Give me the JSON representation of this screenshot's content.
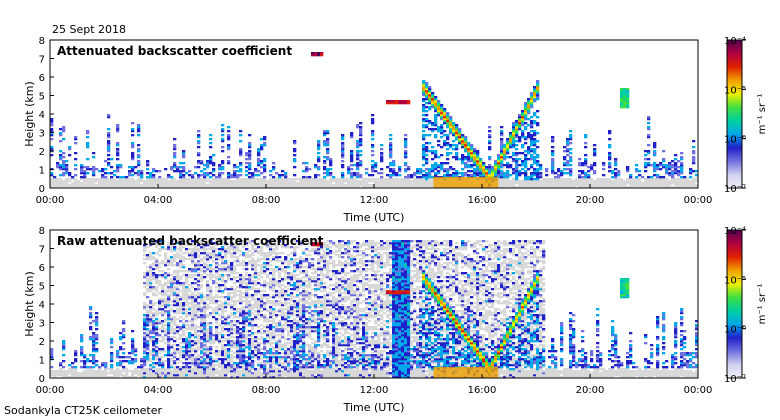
{
  "figure": {
    "date": "25 Sept 2018",
    "instrument": "Sodankyla CT25K ceilometer"
  },
  "colors": {
    "background": "#ffffff",
    "noise_gray": "#d8d8d8",
    "colormap": [
      "#f0f0f8",
      "#d0d0f0",
      "#7070e0",
      "#2020c8",
      "#00a8e8",
      "#00d0a0",
      "#40e040",
      "#f0f000",
      "#f0a000",
      "#e02000",
      "#b00040",
      "#500050"
    ]
  },
  "chart_data": [
    {
      "type": "heatmap",
      "title": "Attenuated backscatter coefficient",
      "xlabel": "Time (UTC)",
      "ylabel": "Height (km)",
      "xlim": [
        0,
        24
      ],
      "ylim": [
        0,
        8
      ],
      "xticks": [
        0,
        4,
        8,
        12,
        16,
        20,
        24
      ],
      "xtick_labels": [
        "00:00",
        "04:00",
        "08:00",
        "12:00",
        "16:00",
        "20:00",
        "00:00"
      ],
      "yticks": [
        0,
        1,
        2,
        3,
        4,
        5,
        6,
        7,
        8
      ],
      "ytick_labels": [
        "0",
        "1",
        "2",
        "3",
        "4",
        "5",
        "6",
        "7",
        "8"
      ],
      "colorbar": {
        "scale": "log",
        "range": [
          1e-07,
          0.0001
        ],
        "tick_labels": [
          "10⁻⁴",
          "10⁻⁵",
          "10⁻⁶",
          "10⁻⁷"
        ],
        "unit_label": "m⁻¹ sr⁻¹"
      },
      "features": [
        {
          "name": "boundary-layer-aerosol",
          "time_range": [
            0,
            24
          ],
          "height_range": [
            0,
            2.5
          ],
          "level": 0.3
        },
        {
          "name": "cloud-layer",
          "time_range": [
            12.6,
            13.2
          ],
          "height_range": [
            4.5,
            4.8
          ],
          "level": 0.9
        },
        {
          "name": "descending-cloud",
          "time_range": [
            13.8,
            16.3
          ],
          "height_start": 5.5,
          "height_end": 0.5,
          "level": 0.75
        },
        {
          "name": "rising-cloud",
          "time_range": [
            16.3,
            18.1
          ],
          "height_start": 0.5,
          "height_end": 5.5,
          "level": 0.7
        },
        {
          "name": "high-cloud",
          "time_range": [
            9.8,
            10.0
          ],
          "height_range": [
            7.1,
            7.4
          ],
          "level": 0.95
        },
        {
          "name": "isolated-cloud",
          "time_range": [
            21.2,
            21.3
          ],
          "height_range": [
            4.3,
            5.4
          ],
          "level": 0.55
        }
      ]
    },
    {
      "type": "heatmap",
      "title": "Raw attenuated backscatter coefficient",
      "xlabel": "Time (UTC)",
      "ylabel": "Height (km)",
      "xlim": [
        0,
        24
      ],
      "ylim": [
        0,
        8
      ],
      "xticks": [
        0,
        4,
        8,
        12,
        16,
        20,
        24
      ],
      "xtick_labels": [
        "00:00",
        "04:00",
        "08:00",
        "12:00",
        "16:00",
        "20:00",
        "00:00"
      ],
      "yticks": [
        0,
        1,
        2,
        3,
        4,
        5,
        6,
        7,
        8
      ],
      "ytick_labels": [
        "0",
        "1",
        "2",
        "3",
        "4",
        "5",
        "6",
        "7",
        "8"
      ],
      "colorbar": {
        "scale": "log",
        "range": [
          1e-07,
          0.0001
        ],
        "tick_labels": [
          "10⁻⁴",
          "10⁻⁵",
          "10⁻⁶",
          "10⁻⁷"
        ],
        "unit_label": "m⁻¹ sr⁻¹"
      },
      "features": [
        {
          "name": "full-column-noise",
          "time_range": [
            3.5,
            18.3
          ],
          "height_range": [
            0,
            7.5
          ],
          "level": 0.05
        },
        {
          "name": "boundary-layer-aerosol",
          "time_range": [
            0,
            24
          ],
          "height_range": [
            0,
            2.5
          ],
          "level": 0.3
        },
        {
          "name": "noise-streak",
          "time_range": [
            12.7,
            13.3
          ],
          "height_range": [
            0,
            7.5
          ],
          "level": 0.3
        },
        {
          "name": "cloud-layer",
          "time_range": [
            12.6,
            13.2
          ],
          "height_range": [
            4.5,
            4.8
          ],
          "level": 0.9
        },
        {
          "name": "descending-cloud",
          "time_range": [
            13.8,
            16.3
          ],
          "height_start": 5.5,
          "height_end": 0.5,
          "level": 0.75
        },
        {
          "name": "rising-cloud",
          "time_range": [
            16.3,
            18.1
          ],
          "height_start": 0.5,
          "height_end": 5.5,
          "level": 0.7
        },
        {
          "name": "high-cloud",
          "time_range": [
            9.8,
            10.0
          ],
          "height_range": [
            7.1,
            7.4
          ],
          "level": 0.95
        },
        {
          "name": "isolated-cloud",
          "time_range": [
            21.2,
            21.3
          ],
          "height_range": [
            4.3,
            5.4
          ],
          "level": 0.55
        }
      ]
    }
  ]
}
